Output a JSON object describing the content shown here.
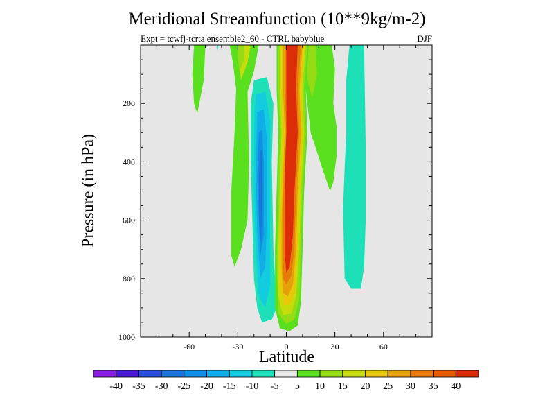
{
  "chart_data": {
    "type": "contour",
    "title": "Meridional Streamfunction (10**9kg/m-2)",
    "subtitle_left": "Expt = tcwfj-tcrta  ensemble2_60 - CTRL babyblue",
    "subtitle_right": "DJF",
    "xlabel": "Latitude",
    "ylabel": "Pressure (in hPa)",
    "xlim": [
      -90,
      90
    ],
    "ylim": [
      1000,
      0
    ],
    "x_ticks": [
      -60,
      -30,
      0,
      30,
      60
    ],
    "y_ticks": [
      200,
      400,
      600,
      800,
      1000
    ],
    "background_color": "#e6e6e6",
    "colorbar": {
      "labels": [
        "-40",
        "-35",
        "-30",
        "-25",
        "-20",
        "-15",
        "-10",
        "-5",
        "5",
        "10",
        "15",
        "20",
        "25",
        "30",
        "35",
        "40"
      ],
      "colors": [
        "#8a1ee6",
        "#4a1ad8",
        "#2a4ee0",
        "#1c74dc",
        "#1090e0",
        "#10aee6",
        "#14cce0",
        "#1ee0b8",
        "#e6e6e6",
        "#5ae01e",
        "#96dc14",
        "#c8dc0c",
        "#e6c808",
        "#e6a00a",
        "#e67c0a",
        "#e65a0a",
        "#dc2c08"
      ]
    },
    "features": [
      {
        "name": "main-positive-cell",
        "lat_range": [
          -5,
          12
        ],
        "p_range": [
          0,
          975
        ],
        "peak": 40,
        "sign": "positive"
      },
      {
        "name": "negative-cell",
        "lat_range": [
          -23,
          -10
        ],
        "p_range": [
          120,
          950
        ],
        "peak": -30,
        "sign": "negative"
      },
      {
        "name": "positive-band-left",
        "lat_range": [
          -35,
          -22
        ],
        "p_range": [
          0,
          760
        ],
        "peak": 10,
        "sign": "positive"
      },
      {
        "name": "positive-band-right",
        "lat_range": [
          12,
          30
        ],
        "p_range": [
          0,
          500
        ],
        "peak": 10,
        "sign": "positive"
      },
      {
        "name": "positive-lobe-far-left",
        "lat_range": [
          -58,
          -50
        ],
        "p_range": [
          0,
          235
        ],
        "peak": 10,
        "sign": "positive"
      },
      {
        "name": "negative-cell-far-right",
        "lat_range": [
          36,
          52
        ],
        "p_range": [
          0,
          835
        ],
        "peak": -5,
        "sign": "negative"
      }
    ]
  }
}
